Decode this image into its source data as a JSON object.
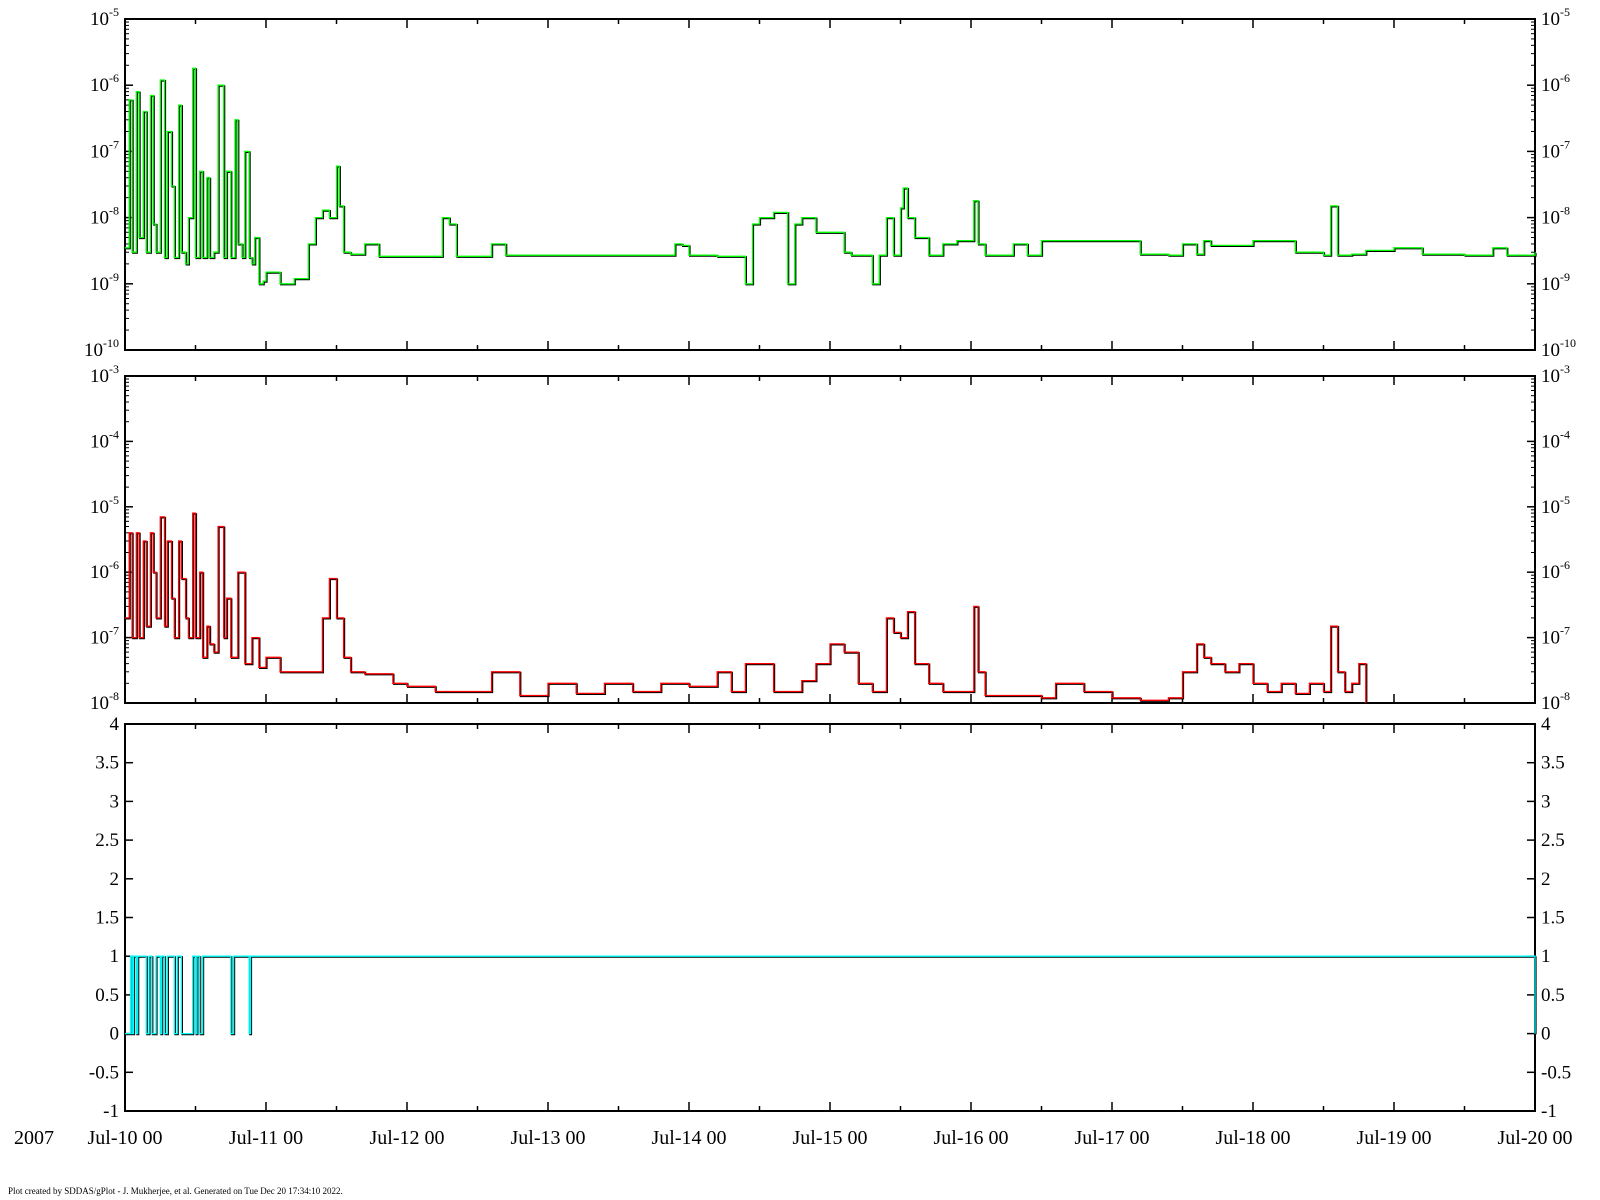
{
  "year_label": "2007",
  "footer": "Plot created by SDDAS/gPlot - J. Mukherjee, et al.  Generated on Tue Dec 20 17:34:10 2022.",
  "colors": {
    "panel1_series": "#00ff00",
    "panel2_series": "#ff0000",
    "panel3_series": "#00ffff",
    "background_series": "#000000",
    "axis": "#000000"
  },
  "chart_data": [
    {
      "type": "line",
      "yscale": "log",
      "ylim": [
        1e-10,
        1e-05
      ],
      "y_ticks": [
        {
          "base": "10",
          "exp": "-10",
          "value": 1e-10
        },
        {
          "base": "10",
          "exp": "-9",
          "value": 1e-09
        },
        {
          "base": "10",
          "exp": "-8",
          "value": 1e-08
        },
        {
          "base": "10",
          "exp": "-7",
          "value": 1e-07
        },
        {
          "base": "10",
          "exp": "-6",
          "value": 1e-06
        },
        {
          "base": "10",
          "exp": "-5",
          "value": 1e-05
        }
      ],
      "x_unit": "days since Jul-10 00",
      "series": [
        {
          "color": "#00ff00",
          "x": [
            0,
            0.03,
            0.05,
            0.08,
            0.1,
            0.13,
            0.15,
            0.18,
            0.2,
            0.22,
            0.25,
            0.28,
            0.3,
            0.33,
            0.35,
            0.38,
            0.4,
            0.43,
            0.45,
            0.48,
            0.5,
            0.53,
            0.55,
            0.58,
            0.6,
            0.63,
            0.66,
            0.7,
            0.72,
            0.75,
            0.78,
            0.8,
            0.83,
            0.85,
            0.88,
            0.9,
            0.92,
            0.95,
            0.98,
            1.0,
            1.1,
            1.2,
            1.3,
            1.35,
            1.4,
            1.45,
            1.5,
            1.52,
            1.55,
            1.6,
            1.7,
            1.8,
            2.0,
            2.2,
            2.25,
            2.3,
            2.35,
            2.5,
            2.6,
            2.7,
            3.0,
            3.5,
            3.85,
            3.9,
            3.95,
            4.0,
            4.2,
            4.35,
            4.4,
            4.45,
            4.5,
            4.6,
            4.7,
            4.75,
            4.8,
            4.9,
            5.0,
            5.1,
            5.15,
            5.2,
            5.3,
            5.35,
            5.4,
            5.45,
            5.5,
            5.52,
            5.55,
            5.6,
            5.7,
            5.8,
            5.9,
            6.0,
            6.02,
            6.05,
            6.1,
            6.2,
            6.3,
            6.4,
            6.5,
            6.6,
            6.7,
            7.0,
            7.2,
            7.4,
            7.5,
            7.6,
            7.65,
            7.7,
            8.0,
            8.1,
            8.3,
            8.5,
            8.55,
            8.6,
            8.7,
            8.8,
            9.0,
            9.2,
            9.5,
            9.65,
            9.7,
            9.8,
            9.9,
            10.0
          ],
          "y": [
            3.5e-09,
            6e-07,
            3e-09,
            8e-07,
            5e-09,
            4e-07,
            3e-09,
            7e-07,
            8e-09,
            3e-09,
            1.2e-06,
            2.5e-09,
            2e-07,
            3e-08,
            2.5e-09,
            5e-07,
            3e-09,
            2e-09,
            1e-08,
            1.8e-06,
            2.5e-09,
            5e-08,
            2.5e-09,
            4e-08,
            2.5e-09,
            3e-09,
            1e-06,
            2.5e-09,
            5e-08,
            2.5e-09,
            3e-07,
            4e-09,
            2.5e-09,
            1e-07,
            2.5e-09,
            2e-09,
            5e-09,
            1e-09,
            1.1e-09,
            1.5e-09,
            1e-09,
            1.2e-09,
            4e-09,
            1e-08,
            1.3e-08,
            1e-08,
            6e-08,
            1.5e-08,
            3e-09,
            2.8e-09,
            4e-09,
            2.6e-09,
            2.6e-09,
            2.6e-09,
            1e-08,
            8e-09,
            2.6e-09,
            2.6e-09,
            4e-09,
            2.7e-09,
            2.7e-09,
            2.7e-09,
            2.7e-09,
            4e-09,
            3.8e-09,
            2.7e-09,
            2.6e-09,
            2.6e-09,
            1e-09,
            8e-09,
            1e-08,
            1.2e-08,
            1e-09,
            8e-09,
            1e-08,
            6e-09,
            6e-09,
            3e-09,
            2.7e-09,
            2.7e-09,
            1e-09,
            2.7e-09,
            1e-08,
            2.7e-09,
            1.4e-08,
            2.8e-08,
            1e-08,
            5e-09,
            2.7e-09,
            4e-09,
            4.5e-09,
            4.5e-09,
            1.8e-08,
            4e-09,
            2.7e-09,
            2.7e-09,
            4e-09,
            2.7e-09,
            4.5e-09,
            4.5e-09,
            4.5e-09,
            4.5e-09,
            2.8e-09,
            2.7e-09,
            4e-09,
            2.8e-09,
            4.5e-09,
            3.8e-09,
            4.5e-09,
            4.5e-09,
            3e-09,
            2.7e-09,
            1.5e-08,
            2.7e-09,
            2.8e-09,
            3.2e-09,
            3.5e-09,
            2.8e-09,
            2.7e-09,
            2.7e-09,
            3.5e-09,
            2.7e-09,
            2.7e-09,
            3e-09
          ]
        }
      ]
    },
    {
      "type": "line",
      "yscale": "log",
      "ylim": [
        1e-08,
        0.001
      ],
      "y_ticks": [
        {
          "base": "10",
          "exp": "-8",
          "value": 1e-08
        },
        {
          "base": "10",
          "exp": "-7",
          "value": 1e-07
        },
        {
          "base": "10",
          "exp": "-6",
          "value": 1e-06
        },
        {
          "base": "10",
          "exp": "-5",
          "value": 1e-05
        },
        {
          "base": "10",
          "exp": "-4",
          "value": 0.0001
        },
        {
          "base": "10",
          "exp": "-3",
          "value": 0.001
        }
      ],
      "x_unit": "days since Jul-10 00",
      "series": [
        {
          "color": "#ff0000",
          "x": [
            0,
            0.03,
            0.05,
            0.08,
            0.1,
            0.13,
            0.15,
            0.18,
            0.2,
            0.22,
            0.25,
            0.28,
            0.3,
            0.33,
            0.35,
            0.38,
            0.4,
            0.43,
            0.45,
            0.48,
            0.5,
            0.53,
            0.55,
            0.58,
            0.6,
            0.63,
            0.66,
            0.7,
            0.72,
            0.75,
            0.8,
            0.85,
            0.9,
            0.95,
            1.0,
            1.1,
            1.2,
            1.3,
            1.4,
            1.45,
            1.5,
            1.55,
            1.6,
            1.7,
            1.8,
            1.9,
            2.0,
            2.2,
            2.4,
            2.6,
            2.8,
            3.0,
            3.2,
            3.4,
            3.6,
            3.8,
            4.0,
            4.2,
            4.3,
            4.4,
            4.6,
            4.8,
            4.9,
            5.0,
            5.1,
            5.2,
            5.3,
            5.4,
            5.45,
            5.5,
            5.55,
            5.6,
            5.7,
            5.8,
            5.9,
            6.0,
            6.02,
            6.05,
            6.1,
            6.3,
            6.5,
            6.6,
            6.8,
            7.0,
            7.2,
            7.4,
            7.5,
            7.6,
            7.65,
            7.7,
            7.8,
            7.9,
            8.0,
            8.1,
            8.2,
            8.3,
            8.4,
            8.5,
            8.55,
            8.6,
            8.65,
            8.7,
            8.75,
            8.8
          ],
          "y": [
            2e-07,
            4e-06,
            1e-07,
            4e-06,
            1e-07,
            3e-06,
            1.5e-07,
            4e-06,
            1e-06,
            2e-07,
            7e-06,
            1.5e-07,
            3e-06,
            4e-07,
            1e-07,
            3e-06,
            8e-07,
            2e-07,
            1e-07,
            8e-06,
            1e-07,
            1e-06,
            5e-08,
            1.5e-07,
            8e-08,
            6e-08,
            5e-06,
            1e-07,
            4e-07,
            5e-08,
            1e-06,
            4e-08,
            1e-07,
            3.5e-08,
            5e-08,
            3e-08,
            3e-08,
            3e-08,
            2e-07,
            8e-07,
            2e-07,
            5e-08,
            3e-08,
            2.8e-08,
            2.8e-08,
            2e-08,
            1.8e-08,
            1.5e-08,
            1.5e-08,
            3e-08,
            1.3e-08,
            2e-08,
            1.4e-08,
            2e-08,
            1.5e-08,
            2e-08,
            1.8e-08,
            3e-08,
            1.5e-08,
            4e-08,
            1.5e-08,
            2.2e-08,
            4e-08,
            8e-08,
            6e-08,
            2e-08,
            1.5e-08,
            2e-07,
            1.2e-07,
            1e-07,
            2.5e-07,
            4e-08,
            2e-08,
            1.5e-08,
            1.5e-08,
            1.5e-08,
            3e-07,
            3e-08,
            1.3e-08,
            1.3e-08,
            1.2e-08,
            2e-08,
            1.5e-08,
            1.2e-08,
            1.1e-08,
            1.2e-08,
            3e-08,
            8e-08,
            5e-08,
            4e-08,
            3e-08,
            4e-08,
            2e-08,
            1.5e-08,
            2e-08,
            1.4e-08,
            2e-08,
            1.5e-08,
            1.5e-07,
            3e-08,
            1.5e-08,
            2e-08,
            4e-08,
            1e-08
          ]
        }
      ]
    },
    {
      "type": "line",
      "yscale": "linear",
      "ylim": [
        -1,
        4
      ],
      "y_ticks": [
        {
          "label": "-1",
          "value": -1
        },
        {
          "label": "-0.5",
          "value": -0.5
        },
        {
          "label": "0",
          "value": 0
        },
        {
          "label": "0.5",
          "value": 0.5
        },
        {
          "label": "1",
          "value": 1
        },
        {
          "label": "1.5",
          "value": 1.5
        },
        {
          "label": "2",
          "value": 2
        },
        {
          "label": "2.5",
          "value": 2.5
        },
        {
          "label": "3",
          "value": 3
        },
        {
          "label": "3.5",
          "value": 3.5
        },
        {
          "label": "4",
          "value": 4
        }
      ],
      "x_unit": "days since Jul-10 00",
      "series": [
        {
          "color": "#00ffff",
          "x": [
            0,
            0.04,
            0.04,
            0.05,
            0.05,
            0.06,
            0.06,
            0.08,
            0.08,
            0.09,
            0.09,
            0.15,
            0.15,
            0.17,
            0.17,
            0.19,
            0.19,
            0.22,
            0.22,
            0.25,
            0.25,
            0.26,
            0.26,
            0.28,
            0.28,
            0.3,
            0.3,
            0.35,
            0.35,
            0.37,
            0.37,
            0.4,
            0.4,
            0.48,
            0.48,
            0.5,
            0.5,
            0.51,
            0.51,
            0.53,
            0.53,
            0.55,
            0.55,
            0.75,
            0.75,
            0.77,
            0.77,
            0.88,
            0.88,
            0.89,
            0.89,
            10.0
          ],
          "y": [
            0,
            0,
            1,
            1,
            0,
            0,
            1,
            1,
            0,
            0,
            1,
            1,
            0,
            0,
            1,
            1,
            0,
            0,
            1,
            1,
            0,
            0,
            1,
            1,
            0,
            0,
            1,
            1,
            0,
            0,
            1,
            1,
            0,
            0,
            1,
            1,
            0,
            0,
            1,
            1,
            0,
            0,
            1,
            1,
            0,
            0,
            1,
            1,
            0,
            0,
            1,
            0
          ]
        }
      ]
    }
  ],
  "x_axis": {
    "range_days": [
      0,
      10
    ],
    "ticks": [
      "Jul-10 00",
      "Jul-11 00",
      "Jul-12 00",
      "Jul-13 00",
      "Jul-14 00",
      "Jul-15 00",
      "Jul-16 00",
      "Jul-17 00",
      "Jul-18 00",
      "Jul-19 00",
      "Jul-20 00"
    ]
  }
}
